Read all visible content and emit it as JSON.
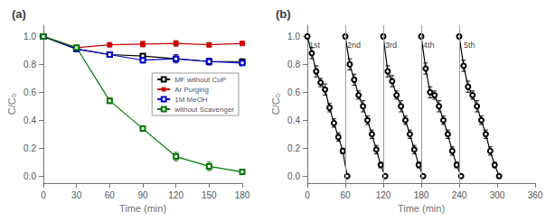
{
  "chart_data": [
    {
      "type": "line",
      "title": "(a)",
      "xlabel": "Time (min)",
      "ylabel": "C/C₀",
      "xlim": [
        0,
        180
      ],
      "ylim": [
        -0.05,
        1.08
      ],
      "xticks": [
        0,
        30,
        60,
        90,
        120,
        150,
        180
      ],
      "yticks": [
        {
          "value": 0,
          "label": "0.0"
        },
        0.2,
        0.4,
        0.6,
        0.8,
        {
          "value": 1,
          "label": "1.0"
        }
      ],
      "grid": false,
      "legend": "right",
      "series": [
        {
          "name": "MF without CuP",
          "color": "#000000",
          "marker": "open_square",
          "x": [
            0,
            30,
            60,
            90,
            120,
            150,
            180
          ],
          "values": [
            1.0,
            0.91,
            0.87,
            0.86,
            0.84,
            0.82,
            0.82
          ],
          "yerr": [
            0.0,
            0.01,
            0.01,
            0.015,
            0.02,
            0.02,
            0.02
          ]
        },
        {
          "name": "Ar Purging",
          "color": "#cc0000",
          "marker": "square",
          "x": [
            0,
            30,
            60,
            90,
            120,
            150,
            180
          ],
          "values": [
            1.0,
            0.92,
            0.94,
            0.945,
            0.95,
            0.94,
            0.95
          ],
          "yerr": [
            0.0,
            0.01,
            0.01,
            0.02,
            0.02,
            0.015,
            0.01
          ]
        },
        {
          "name": "1M MeOH",
          "color": "#0000cc",
          "marker": "open_square",
          "x": [
            0,
            30,
            60,
            90,
            120,
            150,
            180
          ],
          "values": [
            1.0,
            0.91,
            0.87,
            0.83,
            0.84,
            0.82,
            0.81
          ],
          "yerr": [
            0.0,
            0.01,
            0.01,
            0.02,
            0.03,
            0.025,
            0.02
          ]
        },
        {
          "name": "without Scavenger",
          "color": "#007700",
          "marker": "open_square",
          "x": [
            0,
            30,
            60,
            90,
            120,
            150,
            180
          ],
          "values": [
            1.0,
            0.92,
            0.54,
            0.34,
            0.14,
            0.07,
            0.03
          ],
          "yerr": [
            0.0,
            0.01,
            0.02,
            0.02,
            0.03,
            0.03,
            0.02
          ]
        }
      ]
    },
    {
      "type": "line",
      "title": "(b)",
      "xlabel": "Time (min)",
      "ylabel": "C/C₀",
      "xlim": [
        0,
        360
      ],
      "ylim": [
        -0.05,
        1.08
      ],
      "xticks": [
        0,
        60,
        120,
        180,
        240,
        300,
        360
      ],
      "yticks": [
        {
          "value": 0,
          "label": "0.0"
        },
        0.2,
        0.4,
        0.6,
        0.8,
        {
          "value": 1,
          "label": "1.0"
        }
      ],
      "grid": false,
      "series": [
        {
          "color": "#000000",
          "marker": "open_circle",
          "x": [
            0,
            7,
            14,
            21,
            28,
            35,
            42,
            49,
            56,
            63
          ],
          "values": [
            1.0,
            0.88,
            0.75,
            0.67,
            0.62,
            0.49,
            0.38,
            0.28,
            0.18,
            0.0
          ],
          "yerr": [
            0.0,
            0.04,
            0.04,
            0.03,
            0.04,
            0.03,
            0.03,
            0.03,
            0.02,
            0.0
          ]
        },
        {
          "color": "#000000",
          "marker": "open_circle",
          "x": [
            60,
            67,
            74,
            81,
            88,
            95,
            102,
            109,
            116,
            123
          ],
          "values": [
            1.0,
            0.8,
            0.69,
            0.58,
            0.5,
            0.4,
            0.3,
            0.19,
            0.08,
            0.0
          ],
          "yerr": [
            0.0,
            0.04,
            0.04,
            0.03,
            0.04,
            0.03,
            0.03,
            0.03,
            0.02,
            0.0
          ]
        },
        {
          "color": "#000000",
          "marker": "open_circle",
          "x": [
            120,
            127,
            134,
            141,
            148,
            155,
            162,
            169,
            176,
            183
          ],
          "values": [
            1.0,
            0.75,
            0.68,
            0.58,
            0.5,
            0.4,
            0.3,
            0.19,
            0.08,
            0.0
          ],
          "yerr": [
            0.0,
            0.04,
            0.04,
            0.03,
            0.04,
            0.03,
            0.03,
            0.03,
            0.02,
            0.0
          ]
        },
        {
          "color": "#000000",
          "marker": "open_circle",
          "x": [
            180,
            187,
            194,
            201,
            208,
            215,
            222,
            229,
            236,
            243
          ],
          "values": [
            1.0,
            0.77,
            0.6,
            0.58,
            0.5,
            0.4,
            0.3,
            0.18,
            0.08,
            0.0
          ],
          "yerr": [
            0.0,
            0.04,
            0.04,
            0.03,
            0.04,
            0.03,
            0.03,
            0.03,
            0.02,
            0.0
          ]
        },
        {
          "color": "#000000",
          "marker": "open_circle",
          "x": [
            240,
            247,
            254,
            261,
            268,
            275,
            282,
            289,
            296,
            303
          ],
          "values": [
            1.0,
            0.79,
            0.64,
            0.58,
            0.5,
            0.4,
            0.3,
            0.18,
            0.08,
            0.0
          ],
          "yerr": [
            0.0,
            0.04,
            0.04,
            0.03,
            0.04,
            0.03,
            0.03,
            0.03,
            0.02,
            0.0
          ]
        }
      ],
      "vlines": [
        60,
        120,
        180,
        240
      ],
      "annotations": [
        {
          "text": "1st",
          "x": 3,
          "y": 0.97
        },
        {
          "text": "2nd",
          "x": 63,
          "y": 0.97
        },
        {
          "text": "3rd",
          "x": 123,
          "y": 0.97
        },
        {
          "text": "4th",
          "x": 183,
          "y": 0.97
        },
        {
          "text": "5th",
          "x": 247,
          "y": 0.97
        }
      ]
    }
  ]
}
